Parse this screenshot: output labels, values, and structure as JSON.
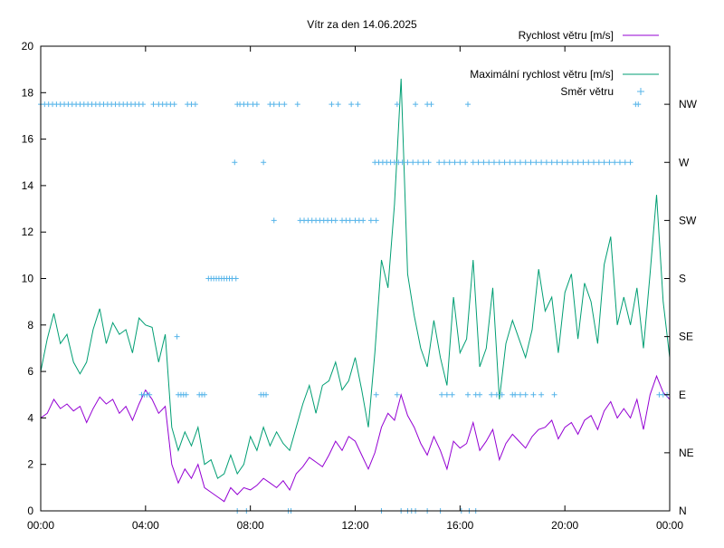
{
  "chart_data": {
    "type": "line",
    "title": "Vítr za den 14.06.2025",
    "x_ticks": [
      "00:00",
      "04:00",
      "08:00",
      "12:00",
      "16:00",
      "20:00",
      "00:00"
    ],
    "y_ticks": [
      "0",
      "2",
      "4",
      "6",
      "8",
      "10",
      "12",
      "14",
      "16",
      "18",
      "20"
    ],
    "y2_ticks": [
      "N",
      "NE",
      "E",
      "SE",
      "S",
      "SW",
      "W",
      "NW"
    ],
    "xlim_hours": [
      0,
      24
    ],
    "ylim": [
      0,
      20
    ],
    "y2_scale": "compass sectors mapped onto speed axis: N=0, NE=2.5, E=5, SE=7.5, S=10, SW=12.5, W=15, NW=17.5",
    "grid": false,
    "legend_position": "top-right",
    "colors": {
      "speed": "#9400d3",
      "gust": "#009e73",
      "direction": "#56b4e9"
    },
    "series": [
      {
        "name": "Rychlost větru [m/s]",
        "style": "line",
        "x_hours": [
          0.0,
          0.25,
          0.5,
          0.75,
          1.0,
          1.25,
          1.5,
          1.75,
          2.0,
          2.25,
          2.5,
          2.75,
          3.0,
          3.25,
          3.5,
          3.75,
          4.0,
          4.25,
          4.5,
          4.75,
          5.0,
          5.25,
          5.5,
          5.75,
          6.0,
          6.25,
          6.5,
          6.75,
          7.0,
          7.25,
          7.5,
          7.75,
          8.0,
          8.25,
          8.5,
          8.75,
          9.0,
          9.25,
          9.5,
          9.75,
          10.0,
          10.25,
          10.5,
          10.75,
          11.0,
          11.25,
          11.5,
          11.75,
          12.0,
          12.25,
          12.5,
          12.75,
          13.0,
          13.25,
          13.5,
          13.75,
          14.0,
          14.25,
          14.5,
          14.75,
          15.0,
          15.25,
          15.5,
          15.75,
          16.0,
          16.25,
          16.5,
          16.75,
          17.0,
          17.25,
          17.5,
          17.75,
          18.0,
          18.25,
          18.5,
          18.75,
          19.0,
          19.25,
          19.5,
          19.75,
          20.0,
          20.25,
          20.5,
          20.75,
          21.0,
          21.25,
          21.5,
          21.75,
          22.0,
          22.25,
          22.5,
          22.75,
          23.0,
          23.25,
          23.5,
          23.75,
          24.0
        ],
        "values": [
          4.0,
          4.2,
          4.8,
          4.4,
          4.6,
          4.3,
          4.5,
          3.8,
          4.4,
          4.9,
          4.6,
          4.8,
          4.2,
          4.5,
          3.9,
          4.6,
          5.2,
          4.8,
          4.2,
          4.5,
          2.0,
          1.2,
          1.8,
          1.4,
          2.0,
          1.0,
          0.8,
          0.6,
          0.4,
          1.0,
          0.7,
          1.0,
          0.9,
          1.1,
          1.4,
          1.2,
          1.0,
          1.3,
          0.9,
          1.6,
          1.9,
          2.3,
          2.1,
          1.9,
          2.4,
          3.0,
          2.6,
          3.2,
          3.0,
          2.4,
          1.8,
          2.5,
          3.6,
          4.2,
          3.9,
          5.0,
          4.1,
          3.6,
          2.9,
          2.4,
          3.2,
          2.6,
          1.8,
          3.0,
          2.7,
          2.9,
          3.8,
          2.6,
          3.0,
          3.5,
          2.2,
          2.9,
          3.3,
          3.0,
          2.7,
          3.2,
          3.5,
          3.6,
          3.9,
          3.1,
          3.6,
          3.8,
          3.3,
          3.9,
          4.1,
          3.5,
          4.3,
          4.7,
          4.0,
          4.4,
          4.0,
          4.8,
          3.5,
          5.0,
          5.8,
          5.1,
          4.8
        ]
      },
      {
        "name": "Maximální rychlost větru [m/s]",
        "style": "line",
        "x_hours": [
          0.0,
          0.25,
          0.5,
          0.75,
          1.0,
          1.25,
          1.5,
          1.75,
          2.0,
          2.25,
          2.5,
          2.75,
          3.0,
          3.25,
          3.5,
          3.75,
          4.0,
          4.25,
          4.5,
          4.75,
          5.0,
          5.25,
          5.5,
          5.75,
          6.0,
          6.25,
          6.5,
          6.75,
          7.0,
          7.25,
          7.5,
          7.75,
          8.0,
          8.25,
          8.5,
          8.75,
          9.0,
          9.25,
          9.5,
          9.75,
          10.0,
          10.25,
          10.5,
          10.75,
          11.0,
          11.25,
          11.5,
          11.75,
          12.0,
          12.25,
          12.5,
          12.75,
          13.0,
          13.25,
          13.5,
          13.75,
          14.0,
          14.25,
          14.5,
          14.75,
          15.0,
          15.25,
          15.5,
          15.75,
          16.0,
          16.25,
          16.5,
          16.75,
          17.0,
          17.25,
          17.5,
          17.75,
          18.0,
          18.25,
          18.5,
          18.75,
          19.0,
          19.25,
          19.5,
          19.75,
          20.0,
          20.25,
          20.5,
          20.75,
          21.0,
          21.25,
          21.5,
          21.75,
          22.0,
          22.25,
          22.5,
          22.75,
          23.0,
          23.25,
          23.5,
          23.75,
          24.0
        ],
        "values": [
          6.0,
          7.4,
          8.5,
          7.2,
          7.6,
          6.4,
          5.9,
          6.4,
          7.8,
          8.7,
          7.2,
          8.1,
          7.6,
          7.8,
          6.8,
          8.3,
          8.0,
          7.9,
          6.4,
          7.6,
          3.6,
          2.6,
          3.4,
          2.8,
          3.6,
          2.0,
          2.2,
          1.4,
          1.6,
          2.4,
          1.6,
          2.0,
          3.2,
          2.6,
          3.6,
          2.8,
          3.4,
          2.9,
          2.6,
          3.6,
          4.6,
          5.4,
          4.2,
          5.4,
          5.6,
          6.4,
          5.2,
          5.6,
          6.6,
          5.2,
          3.6,
          6.8,
          10.8,
          9.6,
          13.2,
          18.6,
          10.2,
          8.4,
          7.0,
          6.2,
          8.2,
          6.6,
          5.4,
          9.2,
          6.8,
          7.4,
          10.8,
          6.2,
          7.0,
          9.6,
          4.8,
          7.2,
          8.2,
          7.4,
          6.6,
          7.8,
          10.4,
          8.6,
          9.2,
          6.8,
          9.4,
          10.2,
          7.4,
          9.8,
          9.0,
          7.2,
          10.6,
          11.8,
          8.0,
          9.2,
          8.0,
          9.6,
          7.0,
          10.2,
          13.6,
          9.0,
          6.6
        ]
      },
      {
        "name": "Směr větru",
        "style": "points",
        "y_axis": "compass",
        "x_hours": [
          0.0,
          0.15,
          0.3,
          0.45,
          0.6,
          0.75,
          0.9,
          1.05,
          1.2,
          1.35,
          1.5,
          1.65,
          1.8,
          1.95,
          2.1,
          2.25,
          2.4,
          2.55,
          2.7,
          2.85,
          3.0,
          3.15,
          3.3,
          3.45,
          3.6,
          3.75,
          3.9,
          4.3,
          4.5,
          4.65,
          4.8,
          4.95,
          5.1,
          5.6,
          5.75,
          5.9,
          7.5,
          7.6,
          7.75,
          7.9,
          8.1,
          8.25,
          8.75,
          8.9,
          9.1,
          9.3,
          9.8,
          11.1,
          11.35,
          11.85,
          12.1,
          13.6,
          14.3,
          14.75,
          14.9,
          16.3,
          22.7,
          22.8,
          7.4,
          8.5,
          12.75,
          12.9,
          13.05,
          13.2,
          13.35,
          13.5,
          13.65,
          13.8,
          14.0,
          14.2,
          14.4,
          14.6,
          14.8,
          15.2,
          15.4,
          15.6,
          15.8,
          16.0,
          16.2,
          16.5,
          16.7,
          16.9,
          17.1,
          17.3,
          17.5,
          17.7,
          17.9,
          18.1,
          18.3,
          18.5,
          18.7,
          18.9,
          19.1,
          19.3,
          19.5,
          19.7,
          19.9,
          20.1,
          20.3,
          20.5,
          20.7,
          20.9,
          21.1,
          21.3,
          21.5,
          21.7,
          21.9,
          22.1,
          22.3,
          22.5,
          8.9,
          9.9,
          10.05,
          10.2,
          10.35,
          10.5,
          10.65,
          10.8,
          10.95,
          11.1,
          11.25,
          11.5,
          11.65,
          11.8,
          12.0,
          12.15,
          12.3,
          12.6,
          12.8,
          6.4,
          6.5,
          6.6,
          6.7,
          6.8,
          6.9,
          7.0,
          7.1,
          7.2,
          7.3,
          7.45,
          5.2,
          3.85,
          3.95,
          4.05,
          4.15,
          5.25,
          5.35,
          5.45,
          5.55,
          6.05,
          6.15,
          6.25,
          8.4,
          8.5,
          8.6,
          12.8,
          13.6,
          15.3,
          15.5,
          15.7,
          16.3,
          16.6,
          16.75,
          17.2,
          17.4,
          17.6,
          18.0,
          18.1,
          18.3,
          18.5,
          18.8,
          19.1,
          19.6,
          23.6,
          23.75,
          23.9,
          7.5,
          7.85,
          9.45,
          9.55,
          13.0,
          13.75,
          14.0,
          14.15,
          14.3,
          14.75,
          15.25,
          16.05,
          16.35,
          16.6
        ],
        "values": [
          17.5,
          17.5,
          17.5,
          17.5,
          17.5,
          17.5,
          17.5,
          17.5,
          17.5,
          17.5,
          17.5,
          17.5,
          17.5,
          17.5,
          17.5,
          17.5,
          17.5,
          17.5,
          17.5,
          17.5,
          17.5,
          17.5,
          17.5,
          17.5,
          17.5,
          17.5,
          17.5,
          17.5,
          17.5,
          17.5,
          17.5,
          17.5,
          17.5,
          17.5,
          17.5,
          17.5,
          17.5,
          17.5,
          17.5,
          17.5,
          17.5,
          17.5,
          17.5,
          17.5,
          17.5,
          17.5,
          17.5,
          17.5,
          17.5,
          17.5,
          17.5,
          17.5,
          17.5,
          17.5,
          17.5,
          17.5,
          17.5,
          17.5,
          15,
          15,
          15,
          15,
          15,
          15,
          15,
          15,
          15,
          15,
          15,
          15,
          15,
          15,
          15,
          15,
          15,
          15,
          15,
          15,
          15,
          15,
          15,
          15,
          15,
          15,
          15,
          15,
          15,
          15,
          15,
          15,
          15,
          15,
          15,
          15,
          15,
          15,
          15,
          15,
          15,
          15,
          15,
          15,
          15,
          15,
          15,
          15,
          15,
          15,
          15,
          15,
          12.5,
          12.5,
          12.5,
          12.5,
          12.5,
          12.5,
          12.5,
          12.5,
          12.5,
          12.5,
          12.5,
          12.5,
          12.5,
          12.5,
          12.5,
          12.5,
          12.5,
          12.5,
          12.5,
          10,
          10,
          10,
          10,
          10,
          10,
          10,
          10,
          10,
          10,
          10,
          7.5,
          5,
          5,
          5,
          5,
          5,
          5,
          5,
          5,
          5,
          5,
          5,
          5,
          5,
          5,
          5,
          5,
          5,
          5,
          5,
          5,
          5,
          5,
          5,
          5,
          5,
          5,
          5,
          5,
          5,
          5,
          5,
          5,
          5,
          5,
          5,
          0,
          0,
          0,
          0,
          0,
          0,
          0,
          0,
          0,
          0,
          0,
          0,
          0,
          0
        ]
      }
    ]
  }
}
